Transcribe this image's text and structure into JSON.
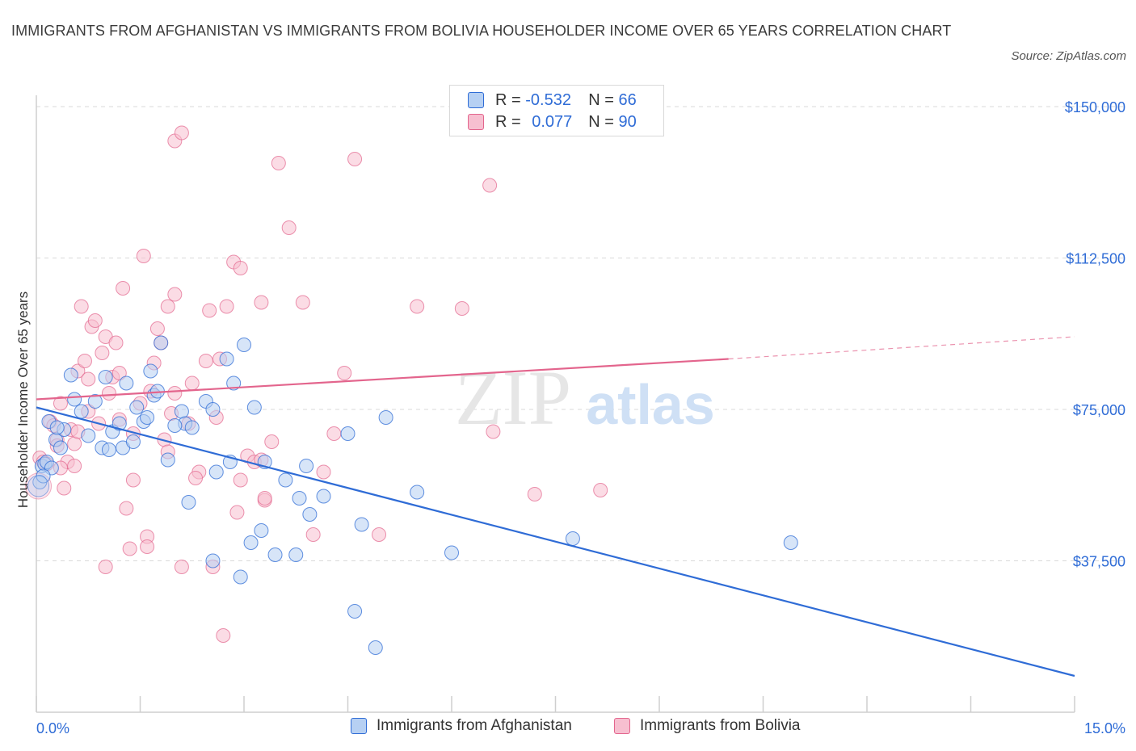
{
  "title": "IMMIGRANTS FROM AFGHANISTAN VS IMMIGRANTS FROM BOLIVIA HOUSEHOLDER INCOME OVER 65 YEARS CORRELATION CHART",
  "source": "Source: ZipAtlas.com",
  "watermark": {
    "zip": "ZIP",
    "atlas": "atlas"
  },
  "legend": {
    "r_label": "R =",
    "n_label": "N =",
    "afghanistan": {
      "r": "-0.532",
      "n": "66"
    },
    "bolivia": {
      "r": "0.077",
      "n": "90"
    }
  },
  "colors": {
    "blue": "#2f6cd6",
    "blue_fill": "#b6d0f3",
    "pink": "#e3658d",
    "pink_fill": "#f7bfd0",
    "axis_text": "#2f6cd6",
    "grid": "#d9d9d9"
  },
  "chart_data": {
    "type": "scatter",
    "title": "IMMIGRANTS FROM AFGHANISTAN VS IMMIGRANTS FROM BOLIVIA HOUSEHOLDER INCOME OVER 65 YEARS CORRELATION CHART",
    "xlabel": "",
    "ylabel": "Householder Income Over 65 years",
    "xlim": [
      0,
      15
    ],
    "ylim": [
      0,
      150000
    ],
    "x_tick_labels": [
      "0.0%",
      "15.0%"
    ],
    "y_ticks": [
      37500,
      75000,
      112500,
      150000
    ],
    "y_tick_labels": [
      "$37,500",
      "$75,000",
      "$112,500",
      "$150,000"
    ],
    "grid": true,
    "legend_position": "top-center",
    "series": [
      {
        "name": "Immigrants from Afghanistan",
        "color": "#2f6cd6",
        "trend": {
          "x": [
            0,
            15
          ],
          "y": [
            75500,
            9000
          ]
        },
        "points": [
          [
            0.05,
            57000
          ],
          [
            0.08,
            61000
          ],
          [
            0.12,
            61500
          ],
          [
            0.15,
            62000
          ],
          [
            0.18,
            72000
          ],
          [
            0.22,
            60500
          ],
          [
            0.28,
            67500
          ],
          [
            0.35,
            65500
          ],
          [
            0.4,
            70000
          ],
          [
            0.5,
            83500
          ],
          [
            0.55,
            77500
          ],
          [
            0.65,
            74500
          ],
          [
            0.75,
            68500
          ],
          [
            0.85,
            77000
          ],
          [
            0.95,
            65500
          ],
          [
            1.0,
            83000
          ],
          [
            1.1,
            69500
          ],
          [
            1.2,
            71500
          ],
          [
            1.25,
            65500
          ],
          [
            1.3,
            81500
          ],
          [
            1.4,
            67000
          ],
          [
            1.45,
            75500
          ],
          [
            1.55,
            72000
          ],
          [
            1.6,
            73000
          ],
          [
            1.65,
            84500
          ],
          [
            1.7,
            78500
          ],
          [
            1.75,
            79500
          ],
          [
            1.8,
            91500
          ],
          [
            1.9,
            62500
          ],
          [
            2.1,
            74500
          ],
          [
            2.15,
            71500
          ],
          [
            2.2,
            52000
          ],
          [
            2.25,
            70500
          ],
          [
            2.45,
            77000
          ],
          [
            2.55,
            75000
          ],
          [
            2.6,
            59500
          ],
          [
            2.55,
            37500
          ],
          [
            2.75,
            87500
          ],
          [
            2.8,
            62000
          ],
          [
            2.85,
            81500
          ],
          [
            2.95,
            33500
          ],
          [
            3.0,
            91000
          ],
          [
            3.1,
            42000
          ],
          [
            3.15,
            75500
          ],
          [
            3.25,
            45000
          ],
          [
            3.45,
            39000
          ],
          [
            3.6,
            57500
          ],
          [
            3.75,
            39000
          ],
          [
            3.8,
            53000
          ],
          [
            3.9,
            61000
          ],
          [
            3.95,
            49000
          ],
          [
            4.15,
            53500
          ],
          [
            4.5,
            69000
          ],
          [
            4.7,
            46500
          ],
          [
            4.6,
            25000
          ],
          [
            4.9,
            16000
          ],
          [
            5.05,
            73000
          ],
          [
            5.5,
            54500
          ],
          [
            6.0,
            39500
          ],
          [
            7.75,
            43000
          ],
          [
            10.9,
            42000
          ],
          [
            0.1,
            58500
          ],
          [
            0.3,
            70500
          ],
          [
            1.05,
            65000
          ],
          [
            2.0,
            71000
          ],
          [
            3.3,
            62000
          ]
        ]
      },
      {
        "name": "Immigrants from Bolivia",
        "color": "#e3658d",
        "trend": {
          "x": [
            0,
            10
          ],
          "y": [
            77500,
            87500
          ],
          "dashed_to": {
            "x": 15,
            "y": 93000
          }
        },
        "points": [
          [
            0.05,
            63000
          ],
          [
            0.1,
            62000
          ],
          [
            0.15,
            61500
          ],
          [
            0.2,
            72000
          ],
          [
            0.25,
            71000
          ],
          [
            0.3,
            67500
          ],
          [
            0.35,
            76500
          ],
          [
            0.4,
            55500
          ],
          [
            0.5,
            70000
          ],
          [
            0.55,
            66500
          ],
          [
            0.6,
            84500
          ],
          [
            0.65,
            100500
          ],
          [
            0.7,
            87000
          ],
          [
            0.75,
            82500
          ],
          [
            0.8,
            95500
          ],
          [
            0.85,
            97000
          ],
          [
            0.9,
            71500
          ],
          [
            0.95,
            89000
          ],
          [
            1.0,
            93000
          ],
          [
            1.05,
            79000
          ],
          [
            1.1,
            83000
          ],
          [
            1.15,
            91500
          ],
          [
            1.2,
            84000
          ],
          [
            1.25,
            105000
          ],
          [
            1.3,
            50500
          ],
          [
            1.35,
            40500
          ],
          [
            1.4,
            69000
          ],
          [
            1.5,
            76500
          ],
          [
            1.55,
            113000
          ],
          [
            1.6,
            43500
          ],
          [
            1.65,
            79500
          ],
          [
            1.7,
            86500
          ],
          [
            1.75,
            95000
          ],
          [
            1.8,
            91500
          ],
          [
            1.85,
            67500
          ],
          [
            1.9,
            100500
          ],
          [
            1.95,
            74000
          ],
          [
            2.0,
            103500
          ],
          [
            2.1,
            36000
          ],
          [
            2.2,
            71500
          ],
          [
            2.25,
            81500
          ],
          [
            2.35,
            59500
          ],
          [
            2.45,
            87000
          ],
          [
            2.5,
            99500
          ],
          [
            2.6,
            73000
          ],
          [
            2.65,
            87500
          ],
          [
            2.75,
            100500
          ],
          [
            2.85,
            111500
          ],
          [
            2.95,
            110000
          ],
          [
            3.05,
            63500
          ],
          [
            3.15,
            62000
          ],
          [
            3.25,
            101500
          ],
          [
            3.3,
            52500
          ],
          [
            3.4,
            67000
          ],
          [
            3.5,
            136000
          ],
          [
            3.65,
            120000
          ],
          [
            3.85,
            101500
          ],
          [
            4.0,
            44000
          ],
          [
            4.15,
            59500
          ],
          [
            4.3,
            69000
          ],
          [
            4.45,
            84000
          ],
          [
            4.6,
            137000
          ],
          [
            4.95,
            44000
          ],
          [
            5.5,
            100500
          ],
          [
            6.15,
            100000
          ],
          [
            6.55,
            130500
          ],
          [
            6.6,
            69500
          ],
          [
            7.2,
            54000
          ],
          [
            8.15,
            55000
          ],
          [
            2.0,
            141500
          ],
          [
            2.1,
            143500
          ],
          [
            1.0,
            36000
          ],
          [
            1.4,
            57500
          ],
          [
            2.55,
            36000
          ],
          [
            2.7,
            19000
          ],
          [
            2.9,
            49500
          ],
          [
            3.25,
            62500
          ],
          [
            0.45,
            62000
          ],
          [
            0.3,
            66000
          ],
          [
            0.6,
            69500
          ],
          [
            1.6,
            41000
          ],
          [
            2.3,
            58000
          ],
          [
            2.95,
            57500
          ],
          [
            3.3,
            53000
          ],
          [
            1.2,
            72500
          ],
          [
            0.75,
            74500
          ],
          [
            1.9,
            64500
          ],
          [
            2.0,
            79000
          ],
          [
            0.55,
            61000
          ],
          [
            0.35,
            60500
          ]
        ]
      }
    ]
  },
  "bottom_legend": {
    "afghanistan": "Immigrants from Afghanistan",
    "bolivia": "Immigrants from Bolivia"
  }
}
